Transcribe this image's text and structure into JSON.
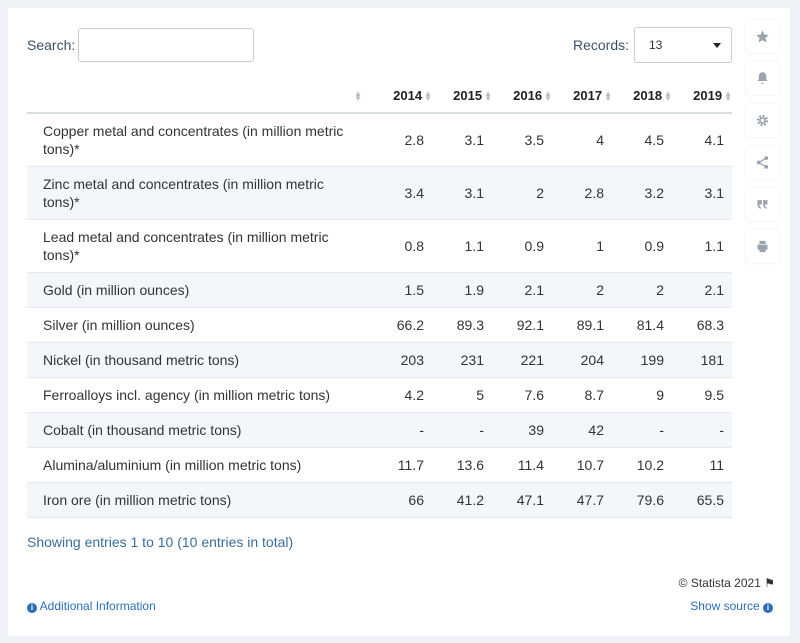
{
  "search": {
    "label": "Search:",
    "value": ""
  },
  "records": {
    "label": "Records:",
    "value": "13"
  },
  "table": {
    "headers": [
      "",
      "2014",
      "2015",
      "2016",
      "2017",
      "2018",
      "2019"
    ],
    "rows": [
      {
        "label": "Copper metal and concentrates (in million metric tons)*",
        "values": [
          "2.8",
          "3.1",
          "3.5",
          "4",
          "4.5",
          "4.1"
        ]
      },
      {
        "label": "Zinc metal and concentrates (in million metric tons)*",
        "values": [
          "3.4",
          "3.1",
          "2",
          "2.8",
          "3.2",
          "3.1"
        ]
      },
      {
        "label": "Lead metal and concentrates (in million metric tons)*",
        "values": [
          "0.8",
          "1.1",
          "0.9",
          "1",
          "0.9",
          "1.1"
        ]
      },
      {
        "label": "Gold (in million ounces)",
        "values": [
          "1.5",
          "1.9",
          "2.1",
          "2",
          "2",
          "2.1"
        ]
      },
      {
        "label": "Silver (in million ounces)",
        "values": [
          "66.2",
          "89.3",
          "92.1",
          "89.1",
          "81.4",
          "68.3"
        ]
      },
      {
        "label": "Nickel (in thousand metric tons)",
        "values": [
          "203",
          "231",
          "221",
          "204",
          "199",
          "181"
        ]
      },
      {
        "label": "Ferroalloys incl. agency (in million metric tons)",
        "values": [
          "4.2",
          "5",
          "7.6",
          "8.7",
          "9",
          "9.5"
        ]
      },
      {
        "label": "Cobalt (in thousand metric tons)",
        "values": [
          "-",
          "-",
          "39",
          "42",
          "-",
          "-"
        ]
      },
      {
        "label": "Alumina/aluminium (in million metric tons)",
        "values": [
          "11.7",
          "13.6",
          "11.4",
          "10.7",
          "10.2",
          "11"
        ]
      },
      {
        "label": "Iron ore (in million metric tons)",
        "values": [
          "66",
          "41.2",
          "47.1",
          "47.7",
          "79.6",
          "65.5"
        ]
      }
    ]
  },
  "footer": {
    "entries": "Showing entries 1 to 10 (10 entries in total)",
    "copyright": "© Statista 2021",
    "additional_info": "Additional Information",
    "show_source": "Show source"
  },
  "sidebar_icons": [
    "star-icon",
    "bell-icon",
    "gear-icon",
    "share-icon",
    "quote-icon",
    "print-icon"
  ]
}
